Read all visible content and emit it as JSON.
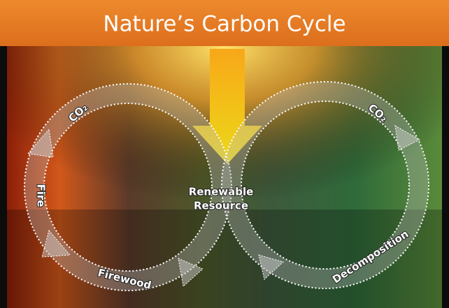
{
  "title": "Nature’s Carbon Cycle",
  "labels": {
    "co2_left": "CO₂",
    "co2_right": "CO₂",
    "fire": "Fire",
    "firewood": "Firewood",
    "center": [
      "Renewable",
      "Resource"
    ],
    "decomposition": "Decomposition"
  }
}
